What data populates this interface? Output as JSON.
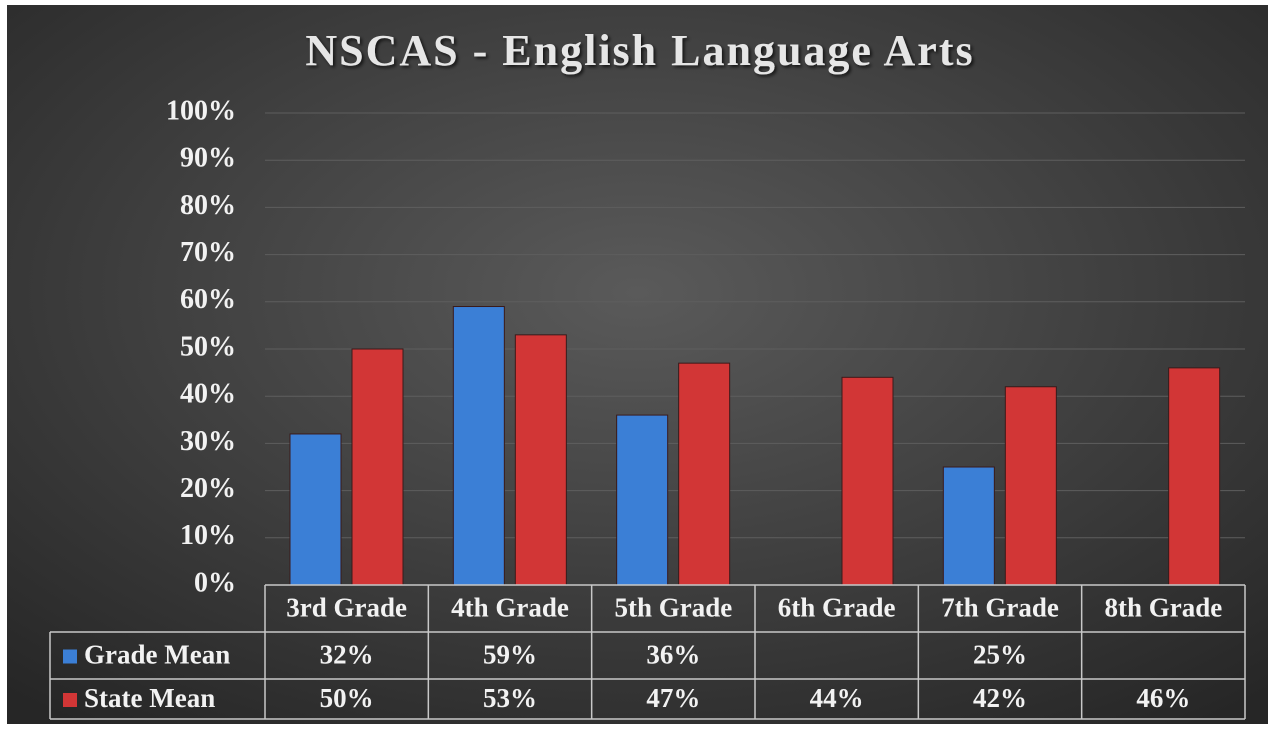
{
  "chart_data": {
    "type": "bar",
    "title": "NSCAS - English Language Arts",
    "categories": [
      "3rd Grade",
      "4th Grade",
      "5th Grade",
      "6th Grade",
      "7th Grade",
      "8th Grade"
    ],
    "series": [
      {
        "name": "Grade Mean",
        "color": "#3b7fd6",
        "values": [
          32,
          59,
          36,
          null,
          25,
          null
        ],
        "value_labels": [
          "32%",
          "59%",
          "36%",
          null,
          "25%",
          null
        ]
      },
      {
        "name": "State Mean",
        "color": "#d23636",
        "values": [
          50,
          53,
          47,
          44,
          42,
          46
        ],
        "value_labels": [
          "50%",
          "53%",
          "47%",
          "44%",
          "42%",
          "46%"
        ]
      }
    ],
    "ylim": [
      0,
      100
    ],
    "yticks": [
      {
        "value": 0,
        "label": "0%"
      },
      {
        "value": 10,
        "label": "10%"
      },
      {
        "value": 20,
        "label": "20%"
      },
      {
        "value": 30,
        "label": "30%"
      },
      {
        "value": 40,
        "label": "40%"
      },
      {
        "value": 50,
        "label": "50%"
      },
      {
        "value": 60,
        "label": "60%"
      },
      {
        "value": 70,
        "label": "70%"
      },
      {
        "value": 80,
        "label": "80%"
      },
      {
        "value": 90,
        "label": "90%"
      },
      {
        "value": 100,
        "label": "100%"
      }
    ],
    "grid": true
  }
}
